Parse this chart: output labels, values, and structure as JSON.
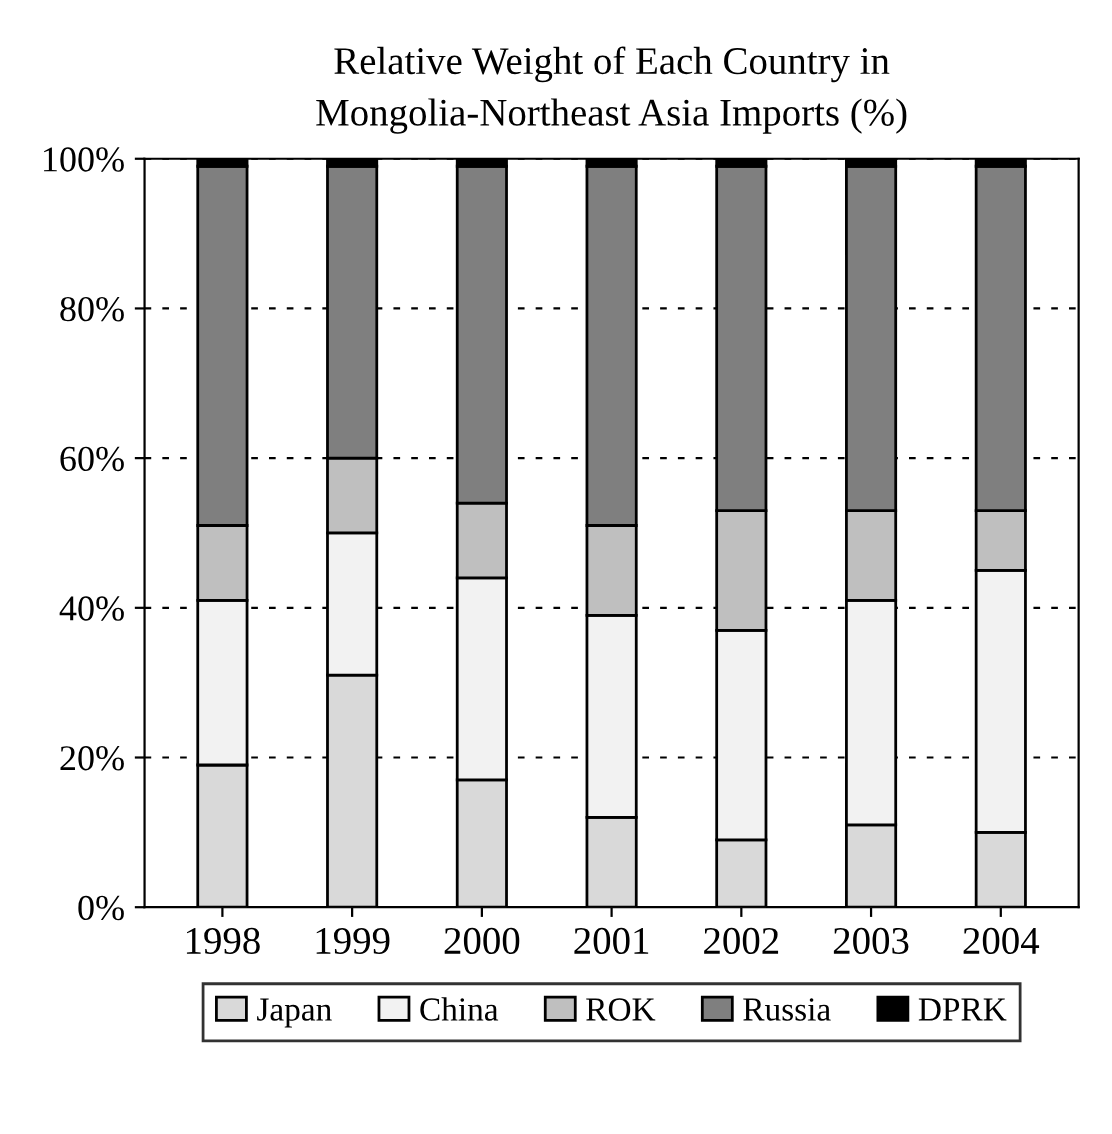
{
  "chart_data": {
    "type": "bar",
    "title": "Relative Weight of Each Country in\nMongolia-Northeast Asia Imports (%)",
    "categories": [
      "1998",
      "1999",
      "2000",
      "2001",
      "2002",
      "2003",
      "2004"
    ],
    "stacked": true,
    "series": [
      {
        "name": "Japan",
        "color": "#d9d9d9",
        "values": [
          19,
          31,
          17,
          12,
          9,
          11,
          10
        ]
      },
      {
        "name": "China",
        "color": "#f2f2f2",
        "values": [
          22,
          19,
          27,
          27,
          28,
          30,
          35
        ]
      },
      {
        "name": "ROK",
        "color": "#bfbfbf",
        "values": [
          10,
          10,
          10,
          12,
          16,
          12,
          8
        ]
      },
      {
        "name": "Russia",
        "color": "#7f7f7f",
        "values": [
          48,
          39,
          45,
          48,
          46,
          46,
          46
        ]
      },
      {
        "name": "DPRK",
        "color": "#000000",
        "values": [
          1,
          1,
          1,
          1,
          1,
          1,
          1
        ]
      }
    ],
    "ylim": [
      0,
      100
    ],
    "yticks": [
      {
        "value": 0,
        "label": "0%"
      },
      {
        "value": 20,
        "label": "20%"
      },
      {
        "value": 40,
        "label": "40%"
      },
      {
        "value": 60,
        "label": "60%"
      },
      {
        "value": 80,
        "label": "80%"
      },
      {
        "value": 100,
        "label": "100%"
      }
    ],
    "grid": "y",
    "legend": "bottom"
  }
}
